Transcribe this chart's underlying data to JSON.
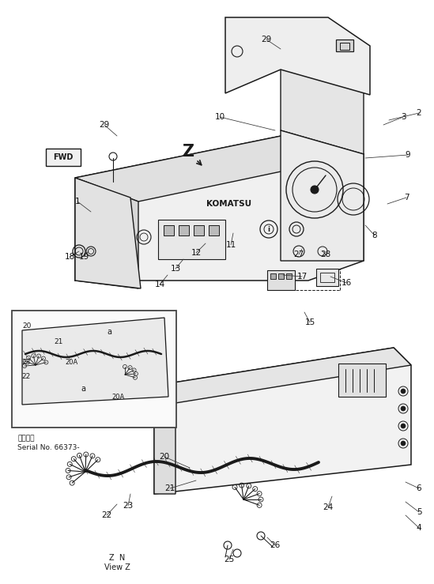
{
  "background_color": "#ffffff",
  "fig_width": 5.49,
  "fig_height": 7.39,
  "dpi": 100,
  "serial_line1": "適用機種",
  "serial_line2": "Serial No. 66373-",
  "view_label": "Z  N\nView Z",
  "fwd_label": "FWD",
  "z_label": "Z",
  "komatsu_label": "KOMATSU"
}
